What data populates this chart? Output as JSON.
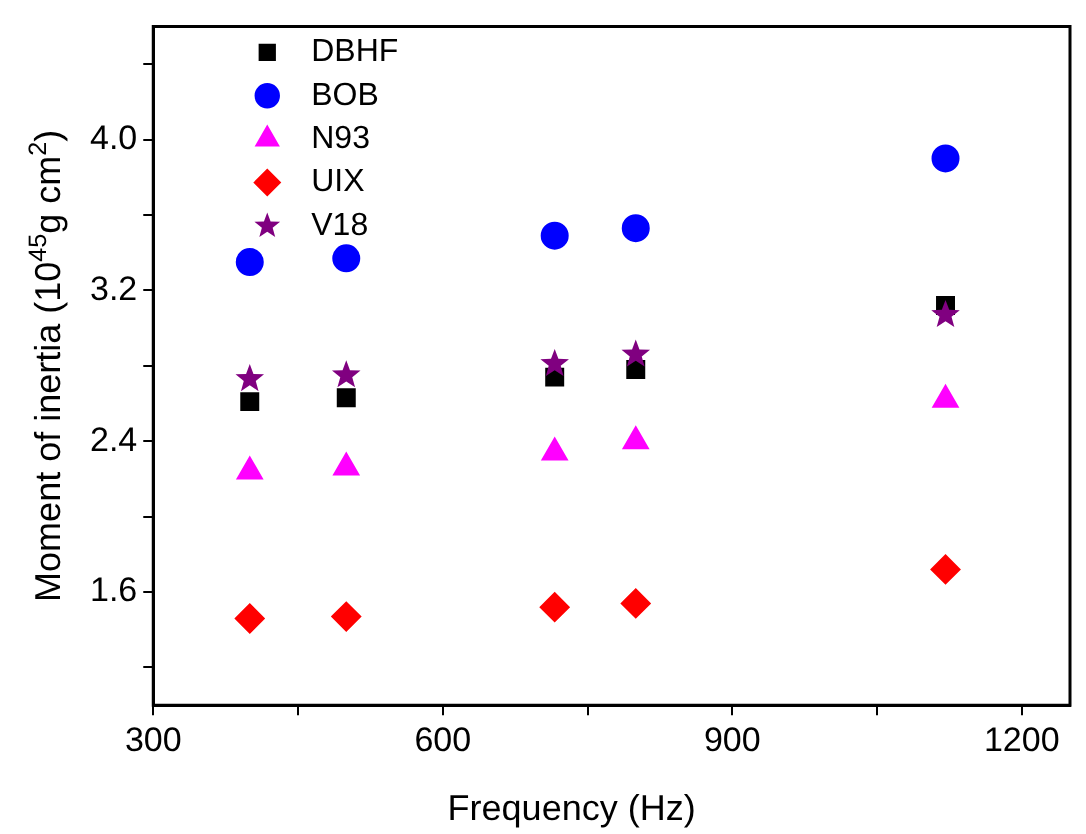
{
  "chart_data": {
    "type": "scatter",
    "xlabel": "Frequency (Hz)",
    "ylabel": "Moment of inertia (10$^{45}$g cm$^{2}$)",
    "x": [
      400,
      500,
      716,
      800,
      1121
    ],
    "series": [
      {
        "name": "DBHF",
        "color": "#000000",
        "marker": "square",
        "values": [
          2.61,
          2.63,
          2.74,
          2.78,
          3.12
        ]
      },
      {
        "name": "BOB",
        "color": "#0000ff",
        "marker": "circle",
        "values": [
          3.35,
          3.37,
          3.49,
          3.53,
          3.9
        ]
      },
      {
        "name": "N93",
        "color": "#ff00ff",
        "marker": "triangle",
        "values": [
          2.24,
          2.26,
          2.34,
          2.4,
          2.62
        ]
      },
      {
        "name": "UIX",
        "color": "#ff0000",
        "marker": "diamond",
        "values": [
          1.46,
          1.47,
          1.52,
          1.54,
          1.72
        ]
      },
      {
        "name": "V18",
        "color": "#800080",
        "marker": "star",
        "values": [
          2.73,
          2.75,
          2.81,
          2.86,
          3.07
        ]
      }
    ],
    "xlim": [
      300,
      1250
    ],
    "xticks": [
      300,
      {
        "value": 450,
        "label": null
      },
      600,
      {
        "value": 750,
        "label": null
      },
      900,
      {
        "value": 1050,
        "label": null
      },
      1200
    ],
    "ylim": [
      1.0,
      4.6
    ],
    "yticks": [
      {
        "value": 1.2,
        "label": null
      },
      1.6,
      {
        "value": 2.0,
        "label": null
      },
      2.4,
      {
        "value": 2.8,
        "label": null
      },
      3.2,
      {
        "value": 3.6,
        "label": null
      },
      {
        "value": 4,
        "label": "4.0"
      },
      {
        "value": 4.4,
        "label": null
      }
    ],
    "grid": false,
    "legend": "top left"
  }
}
